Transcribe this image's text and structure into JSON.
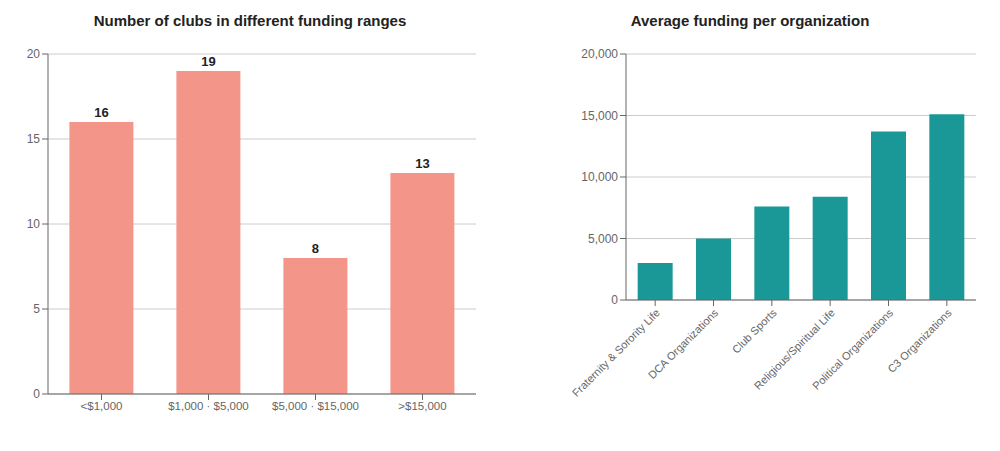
{
  "chart_data": [
    {
      "type": "bar",
      "title": "Number of clubs in different funding ranges",
      "categories": [
        "<$1,000",
        "$1,000 · $5,000",
        "$5,000 · $15,000",
        ">$15,000"
      ],
      "values": [
        16,
        19,
        8,
        13
      ],
      "color": "#F4958A",
      "ylim": [
        0,
        20
      ],
      "yticks": [
        0,
        5,
        10,
        15,
        20
      ],
      "grid": true,
      "data_labels": true
    },
    {
      "type": "bar",
      "title": "Average funding per organization",
      "categories": [
        "Fraternity & Sorority Life",
        "DCA Organizations",
        "Club Sports",
        "Religious/Spiritual Life",
        "Political Organizations",
        "C3 Organizations"
      ],
      "values": [
        3000,
        5000,
        7600,
        8400,
        13700,
        15100
      ],
      "color": "#1A9898",
      "ylim": [
        0,
        20000
      ],
      "yticks": [
        0,
        {
          "value": 5000,
          "label": "5,000"
        },
        {
          "value": 10000,
          "label": "10,000"
        },
        {
          "value": 15000,
          "label": "15,000"
        },
        {
          "value": 20000,
          "label": "20,000"
        }
      ],
      "grid": true
    }
  ]
}
